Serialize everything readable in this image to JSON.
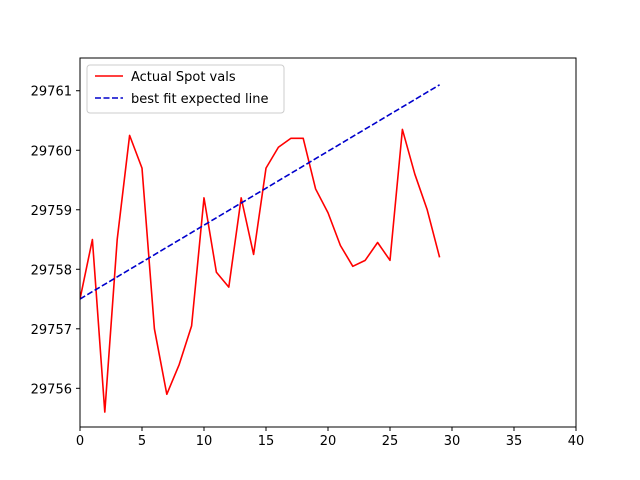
{
  "chart_data": {
    "type": "line",
    "title": "",
    "xlabel": "",
    "ylabel": "",
    "xlim": [
      0,
      40
    ],
    "ylim": [
      29755.35,
      29761.55
    ],
    "xticks": [
      0,
      5,
      10,
      15,
      20,
      25,
      30,
      35,
      40
    ],
    "yticks": [
      29756,
      29757,
      29758,
      29759,
      29760,
      29761
    ],
    "grid": false,
    "legend_position": "upper-left",
    "series": [
      {
        "name": "Actual Spot vals",
        "color": "#ff0000",
        "style": "solid",
        "x": [
          0,
          1,
          2,
          3,
          4,
          5,
          6,
          7,
          8,
          9,
          10,
          11,
          12,
          13,
          14,
          15,
          16,
          17,
          18,
          19,
          20,
          21,
          22,
          23,
          24,
          25,
          26,
          27,
          28,
          29
        ],
        "values": [
          29757.5,
          29758.5,
          29755.6,
          29758.5,
          29760.25,
          29759.7,
          29757.0,
          29755.9,
          29756.4,
          29757.05,
          29759.2,
          29757.95,
          29757.7,
          29759.2,
          29758.25,
          29759.7,
          29760.05,
          29760.2,
          29760.2,
          29759.35,
          29758.95,
          29758.4,
          29758.05,
          29758.15,
          29758.45,
          29758.15,
          29760.35,
          29759.6,
          29759.0,
          29758.2
        ]
      },
      {
        "name": "best fit expected line",
        "color": "#0000cc",
        "style": "dashed",
        "x": [
          0,
          29
        ],
        "values": [
          29757.5,
          29761.1
        ]
      }
    ]
  }
}
